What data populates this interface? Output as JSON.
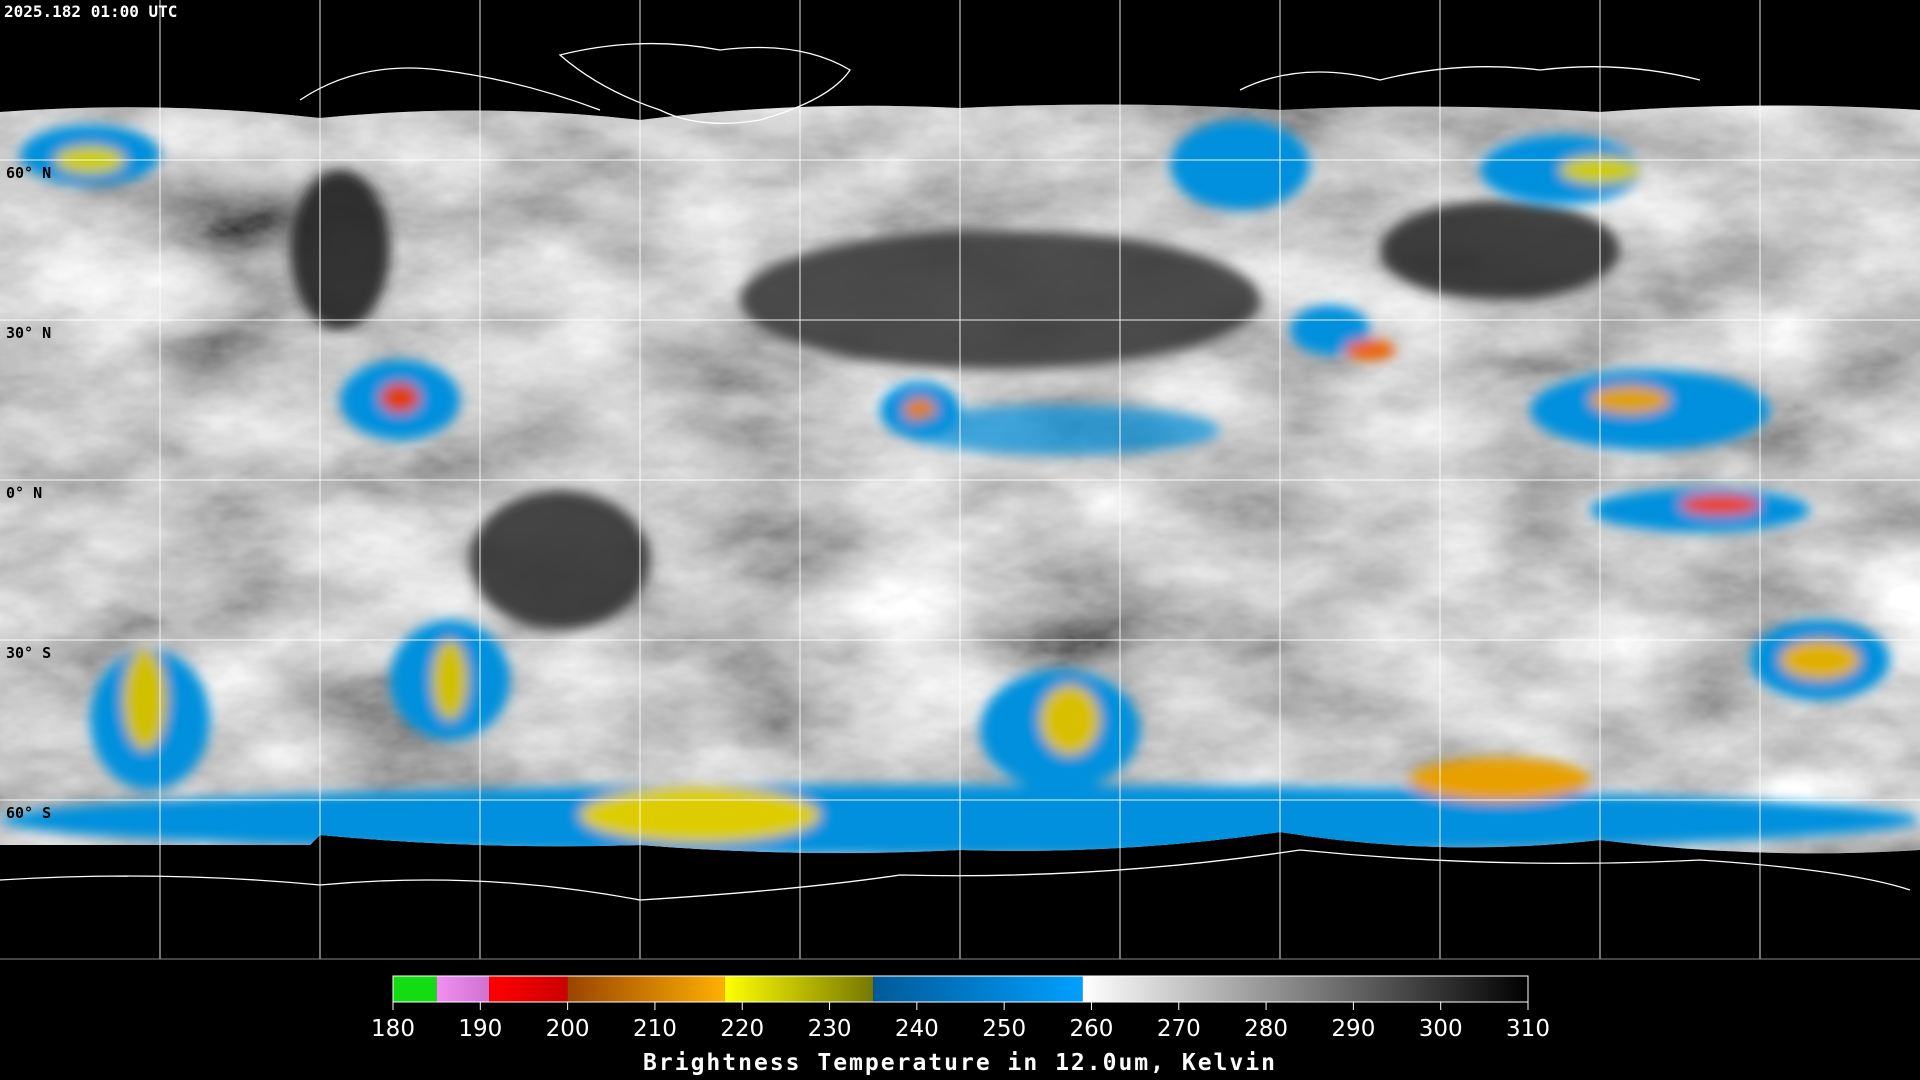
{
  "header": {
    "timestamp": "2025.182 01:00 UTC"
  },
  "map": {
    "lat_labels": [
      "60° N",
      "30° N",
      "0° N",
      "30° S",
      "60° S"
    ]
  },
  "colorbar": {
    "title": "Brightness Temperature in 12.0um, Kelvin",
    "ticks": [
      180,
      190,
      200,
      210,
      220,
      230,
      240,
      250,
      260,
      270,
      280,
      290,
      300,
      310
    ],
    "segments": [
      {
        "from": 180,
        "to": 185,
        "colors": [
          "#11dd11",
          "#11dd11"
        ]
      },
      {
        "from": 185,
        "to": 191,
        "colors": [
          "#f090f0",
          "#d070d0"
        ]
      },
      {
        "from": 191,
        "to": 200,
        "colors": [
          "#ff0000",
          "#cc0000"
        ]
      },
      {
        "from": 200,
        "to": 218,
        "colors": [
          "#994400",
          "#ffb000"
        ]
      },
      {
        "from": 218,
        "to": 235,
        "colors": [
          "#ffff00",
          "#777700"
        ]
      },
      {
        "from": 235,
        "to": 259,
        "colors": [
          "#005a99",
          "#00a0ff"
        ]
      },
      {
        "from": 259,
        "to": 310,
        "colors": [
          "#ffffff",
          "#000000"
        ]
      }
    ]
  }
}
